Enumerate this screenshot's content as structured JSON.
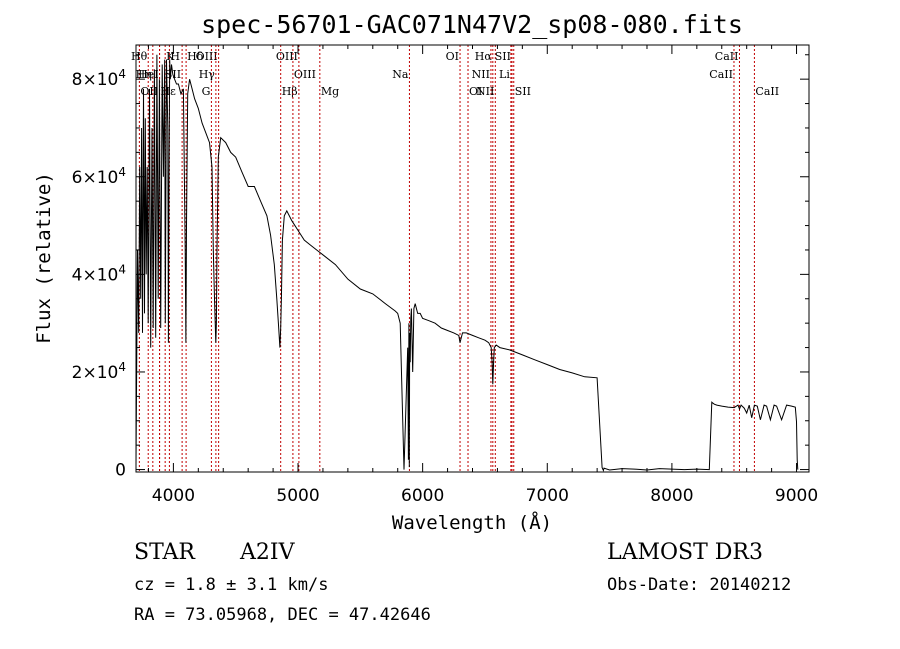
{
  "chart_data": {
    "type": "line",
    "title": "spec-56701-GAC071N47V2_sp08-080.fits",
    "xlabel": "Wavelength (Å)",
    "ylabel": "Flux (relative)",
    "xlim": [
      3700,
      9100
    ],
    "ylim": [
      -500,
      87000
    ],
    "x_ticks": [
      4000,
      5000,
      6000,
      7000,
      8000,
      9000
    ],
    "x_tick_labels": [
      "4000",
      "5000",
      "6000",
      "7000",
      "8000",
      "9000"
    ],
    "y_ticks": [
      0,
      20000,
      40000,
      60000,
      80000
    ],
    "y_tick_labels": [
      {
        "mant": "0",
        "exp": ""
      },
      {
        "mant": "2×10",
        "exp": "4"
      },
      {
        "mant": "4×10",
        "exp": "4"
      },
      {
        "mant": "6×10",
        "exp": "4"
      },
      {
        "mant": "8×10",
        "exp": "4"
      }
    ],
    "series": [
      {
        "name": "flux",
        "x": [
          3700,
          3712,
          3722,
          3730,
          3738,
          3745,
          3752,
          3760,
          3768,
          3775,
          3782,
          3790,
          3798,
          3808,
          3818,
          3828,
          3838,
          3848,
          3858,
          3868,
          3878,
          3888,
          3898,
          3910,
          3920,
          3930,
          3935,
          3945,
          3955,
          3960,
          3965,
          3970,
          3975,
          3985,
          3995,
          4010,
          4025,
          4040,
          4060,
          4080,
          4095,
          4100,
          4105,
          4115,
          4130,
          4150,
          4170,
          4200,
          4230,
          4260,
          4290,
          4310,
          4320,
          4330,
          4340,
          4345,
          4350,
          4360,
          4380,
          4420,
          4460,
          4500,
          4550,
          4600,
          4650,
          4700,
          4750,
          4780,
          4810,
          4830,
          4845,
          4855,
          4861,
          4867,
          4875,
          4890,
          4910,
          4950,
          5000,
          5050,
          5100,
          5150,
          5200,
          5300,
          5400,
          5500,
          5600,
          5700,
          5780,
          5800,
          5820,
          5850,
          5880,
          5886,
          5890,
          5893,
          5896,
          5900,
          5905,
          5910,
          5920,
          5930,
          5940,
          5950,
          5960,
          5980,
          6000,
          6050,
          6100,
          6150,
          6200,
          6250,
          6290,
          6300,
          6320,
          6350,
          6400,
          6450,
          6500,
          6530,
          6550,
          6557,
          6563,
          6569,
          6575,
          6590,
          6620,
          6700,
          6800,
          6900,
          7000,
          7100,
          7200,
          7300,
          7400,
          7440,
          7450,
          7455,
          7500,
          7600,
          7700,
          7800,
          7900,
          8000,
          8100,
          8200,
          8300,
          8320,
          8330,
          8340,
          8360,
          8400,
          8450,
          8500,
          8530,
          8542,
          8555,
          8580,
          8600,
          8620,
          8640,
          8662,
          8685,
          8710,
          8740,
          8760,
          8790,
          8820,
          8840,
          8880,
          8920,
          8960,
          8990,
          9000,
          9005,
          9010
        ],
        "y": [
          1000,
          45000,
          28000,
          62000,
          35000,
          70000,
          28000,
          78000,
          32000,
          72000,
          40000,
          62000,
          30000,
          78000,
          25000,
          70000,
          29000,
          82000,
          27000,
          85000,
          35000,
          80000,
          29000,
          83000,
          60000,
          84000,
          30000,
          84000,
          70000,
          26000,
          60000,
          84000,
          80000,
          83000,
          81000,
          80000,
          79000,
          79000,
          77000,
          78000,
          45000,
          26000,
          50000,
          77000,
          80000,
          78000,
          76000,
          74000,
          71000,
          69000,
          67000,
          62000,
          45000,
          35000,
          26000,
          30000,
          45000,
          64000,
          68000,
          67000,
          65000,
          64000,
          61000,
          58000,
          58000,
          55000,
          52000,
          48000,
          42000,
          35000,
          29000,
          25000,
          29000,
          35000,
          47000,
          52000,
          53000,
          51000,
          49000,
          47000,
          46000,
          45000,
          44000,
          42000,
          39000,
          37000,
          36000,
          34000,
          32500,
          32000,
          30000,
          0,
          25000,
          2000,
          30000,
          500,
          28000,
          22000,
          31000,
          33000,
          20000,
          33000,
          34000,
          33000,
          32000,
          32000,
          31000,
          30500,
          30000,
          29000,
          28500,
          28000,
          27500,
          26000,
          28000,
          28000,
          27500,
          27000,
          26500,
          26000,
          25000,
          22000,
          17500,
          22000,
          25000,
          25500,
          25000,
          24500,
          23500,
          22500,
          21500,
          20500,
          19800,
          19000,
          18800,
          400,
          -200,
          300,
          -100,
          200,
          100,
          -100,
          200,
          100,
          0,
          100,
          0,
          13800,
          13600,
          13400,
          13200,
          13000,
          12800,
          12700,
          13200,
          12400,
          13200,
          12600,
          11600,
          13200,
          10600,
          13200,
          13000,
          10200,
          13200,
          13000,
          10200,
          13200,
          13000,
          10200,
          13200,
          13000,
          12800,
          9800,
          2000,
          0
        ]
      }
    ],
    "lines": [
      {
        "name": "Hθ",
        "wave": 3798,
        "row": 0,
        "pos": "left"
      },
      {
        "name": "OII",
        "wave": 3727,
        "row": 2,
        "pos": "right"
      },
      {
        "name": "Hη",
        "wave": 3835,
        "row": 1,
        "pos": "left"
      },
      {
        "name": "HeI",
        "wave": 3889,
        "row": 1,
        "pos": "left"
      },
      {
        "name": "Hε",
        "wave": 3889,
        "row": 2,
        "pos": "right"
      },
      {
        "name": "K",
        "wave": 3934,
        "row": 0,
        "pos": "right"
      },
      {
        "name": "H",
        "wave": 3968,
        "row": 0,
        "pos": "right"
      },
      {
        "name": "SII",
        "wave": 4070,
        "row": 1,
        "pos": "left"
      },
      {
        "name": "Hδ",
        "wave": 4102,
        "row": 0,
        "pos": "right"
      },
      {
        "name": "G",
        "wave": 4305,
        "row": 2,
        "pos": "left"
      },
      {
        "name": "OIII",
        "wave": 4363,
        "row": 0,
        "pos": "left"
      },
      {
        "name": "Hγ",
        "wave": 4341,
        "row": 1,
        "pos": "left"
      },
      {
        "name": "Hβ",
        "wave": 4861,
        "row": 2,
        "pos": "right"
      },
      {
        "name": "OIII",
        "wave": 4959,
        "row": 1,
        "pos": "right"
      },
      {
        "name": "OIII",
        "wave": 5007,
        "row": 0,
        "pos": "left"
      },
      {
        "name": "Mg",
        "wave": 5175,
        "row": 2,
        "pos": "right"
      },
      {
        "name": "Na",
        "wave": 5894,
        "row": 1,
        "pos": "left"
      },
      {
        "name": "OI",
        "wave": 6300,
        "row": 0,
        "pos": "left"
      },
      {
        "name": "OI",
        "wave": 6364,
        "row": 2,
        "pos": "right"
      },
      {
        "name": "Hα",
        "wave": 6563,
        "row": 0,
        "pos": "left"
      },
      {
        "name": "NII",
        "wave": 6548,
        "row": 1,
        "pos": "left"
      },
      {
        "name": "NII",
        "wave": 6583,
        "row": 2,
        "pos": "left"
      },
      {
        "name": "SII",
        "wave": 6717,
        "row": 0,
        "pos": "left"
      },
      {
        "name": "Li",
        "wave": 6708,
        "row": 1,
        "pos": "left"
      },
      {
        "name": "SII",
        "wave": 6731,
        "row": 2,
        "pos": "right"
      },
      {
        "name": "CaII",
        "wave": 8498,
        "row": 1,
        "pos": "left"
      },
      {
        "name": "CaII",
        "wave": 8542,
        "row": 0,
        "pos": "left"
      },
      {
        "name": "CaII",
        "wave": 8662,
        "row": 2,
        "pos": "right"
      }
    ]
  },
  "info": {
    "class": "STAR",
    "subclass": "A2IV",
    "survey": "LAMOST DR3",
    "cz": "cz = 1.8 ± 3.1 km/s",
    "obs_date": "Obs-Date: 20140212",
    "radec": "RA =  73.05968, DEC =  47.42646"
  }
}
